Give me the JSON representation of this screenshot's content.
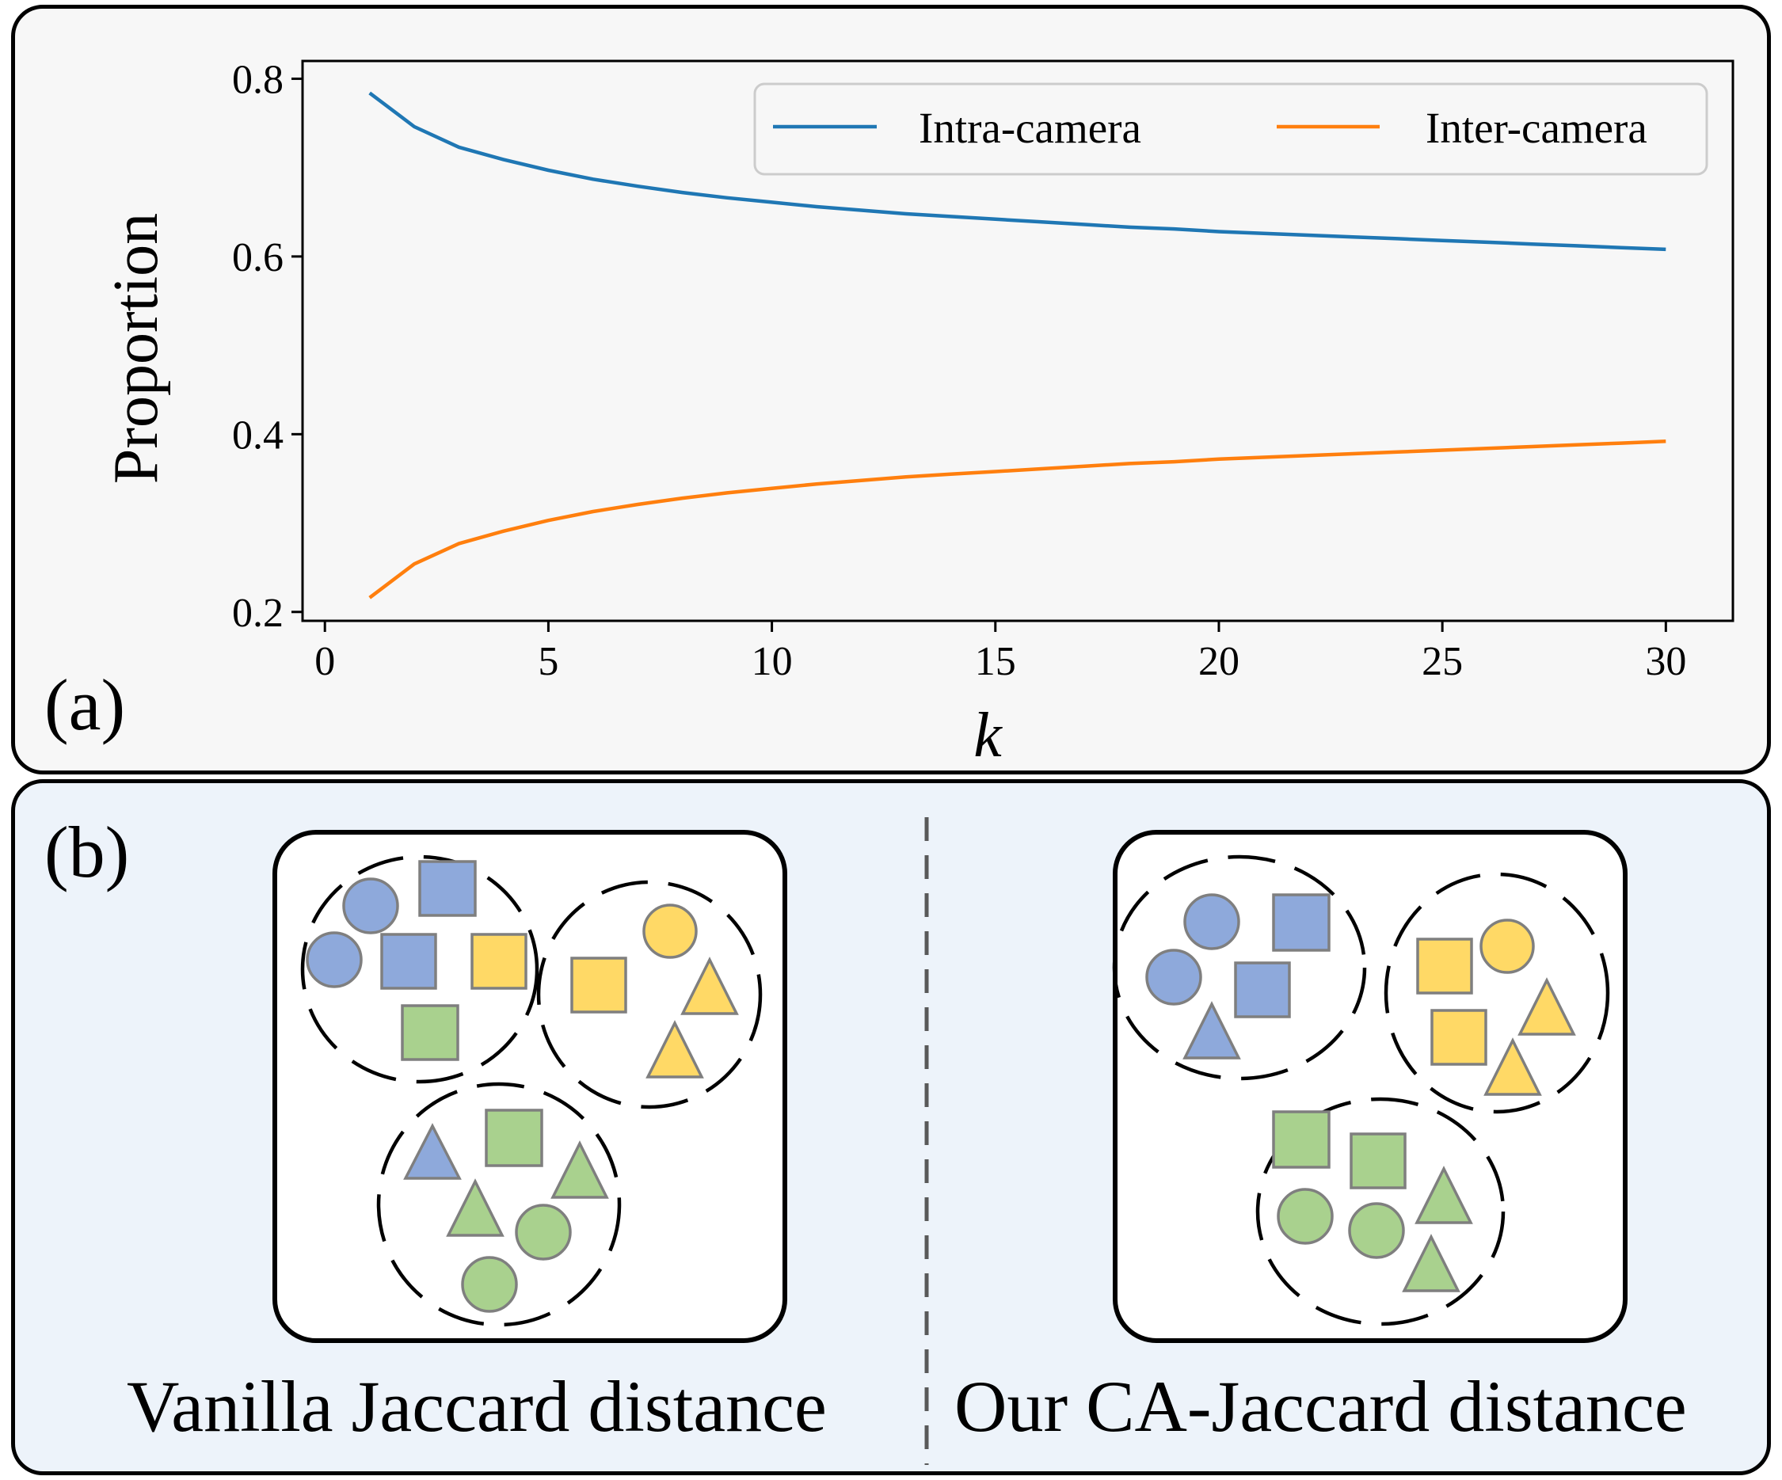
{
  "panels": {
    "a": {
      "label": "(a)"
    },
    "b": {
      "label": "(b)"
    }
  },
  "chart_data": {
    "type": "line",
    "xlabel": "k",
    "ylabel": "Proportion",
    "xlim": [
      -0.5,
      31.5
    ],
    "ylim": [
      0.19,
      0.82
    ],
    "xticks": [
      0,
      5,
      10,
      15,
      20,
      25,
      30
    ],
    "yticks": [
      0.2,
      0.4,
      0.6,
      0.8
    ],
    "ytick_labels": [
      "0.2",
      "0.4",
      "0.6",
      "0.8"
    ],
    "grid": false,
    "legend_position": "top-right",
    "x": [
      1,
      2,
      3,
      4,
      5,
      6,
      7,
      8,
      9,
      10,
      11,
      12,
      13,
      14,
      15,
      16,
      17,
      18,
      19,
      20,
      21,
      22,
      23,
      24,
      25,
      26,
      27,
      28,
      29,
      30
    ],
    "series": [
      {
        "name": "Intra-camera",
        "color": "#1f77b4",
        "values": [
          0.784,
          0.746,
          0.723,
          0.709,
          0.697,
          0.687,
          0.679,
          0.672,
          0.666,
          0.661,
          0.656,
          0.652,
          0.648,
          0.645,
          0.642,
          0.639,
          0.636,
          0.633,
          0.631,
          0.628,
          0.626,
          0.624,
          0.622,
          0.62,
          0.618,
          0.616,
          0.614,
          0.612,
          0.61,
          0.608
        ]
      },
      {
        "name": "Inter-camera",
        "color": "#ff7f0e",
        "values": [
          0.216,
          0.254,
          0.277,
          0.291,
          0.303,
          0.313,
          0.321,
          0.328,
          0.334,
          0.339,
          0.344,
          0.348,
          0.352,
          0.355,
          0.358,
          0.361,
          0.364,
          0.367,
          0.369,
          0.372,
          0.374,
          0.376,
          0.378,
          0.38,
          0.382,
          0.384,
          0.386,
          0.388,
          0.39,
          0.392
        ]
      }
    ]
  },
  "diagram": {
    "shape_colors": {
      "blue": "#8ea9db",
      "yellow": "#ffd966",
      "green": "#a9d18e",
      "stroke": "#7f7f7f"
    },
    "left_caption": "Vanilla Jaccard distance",
    "right_caption": "Our CA-Jaccard distance"
  }
}
